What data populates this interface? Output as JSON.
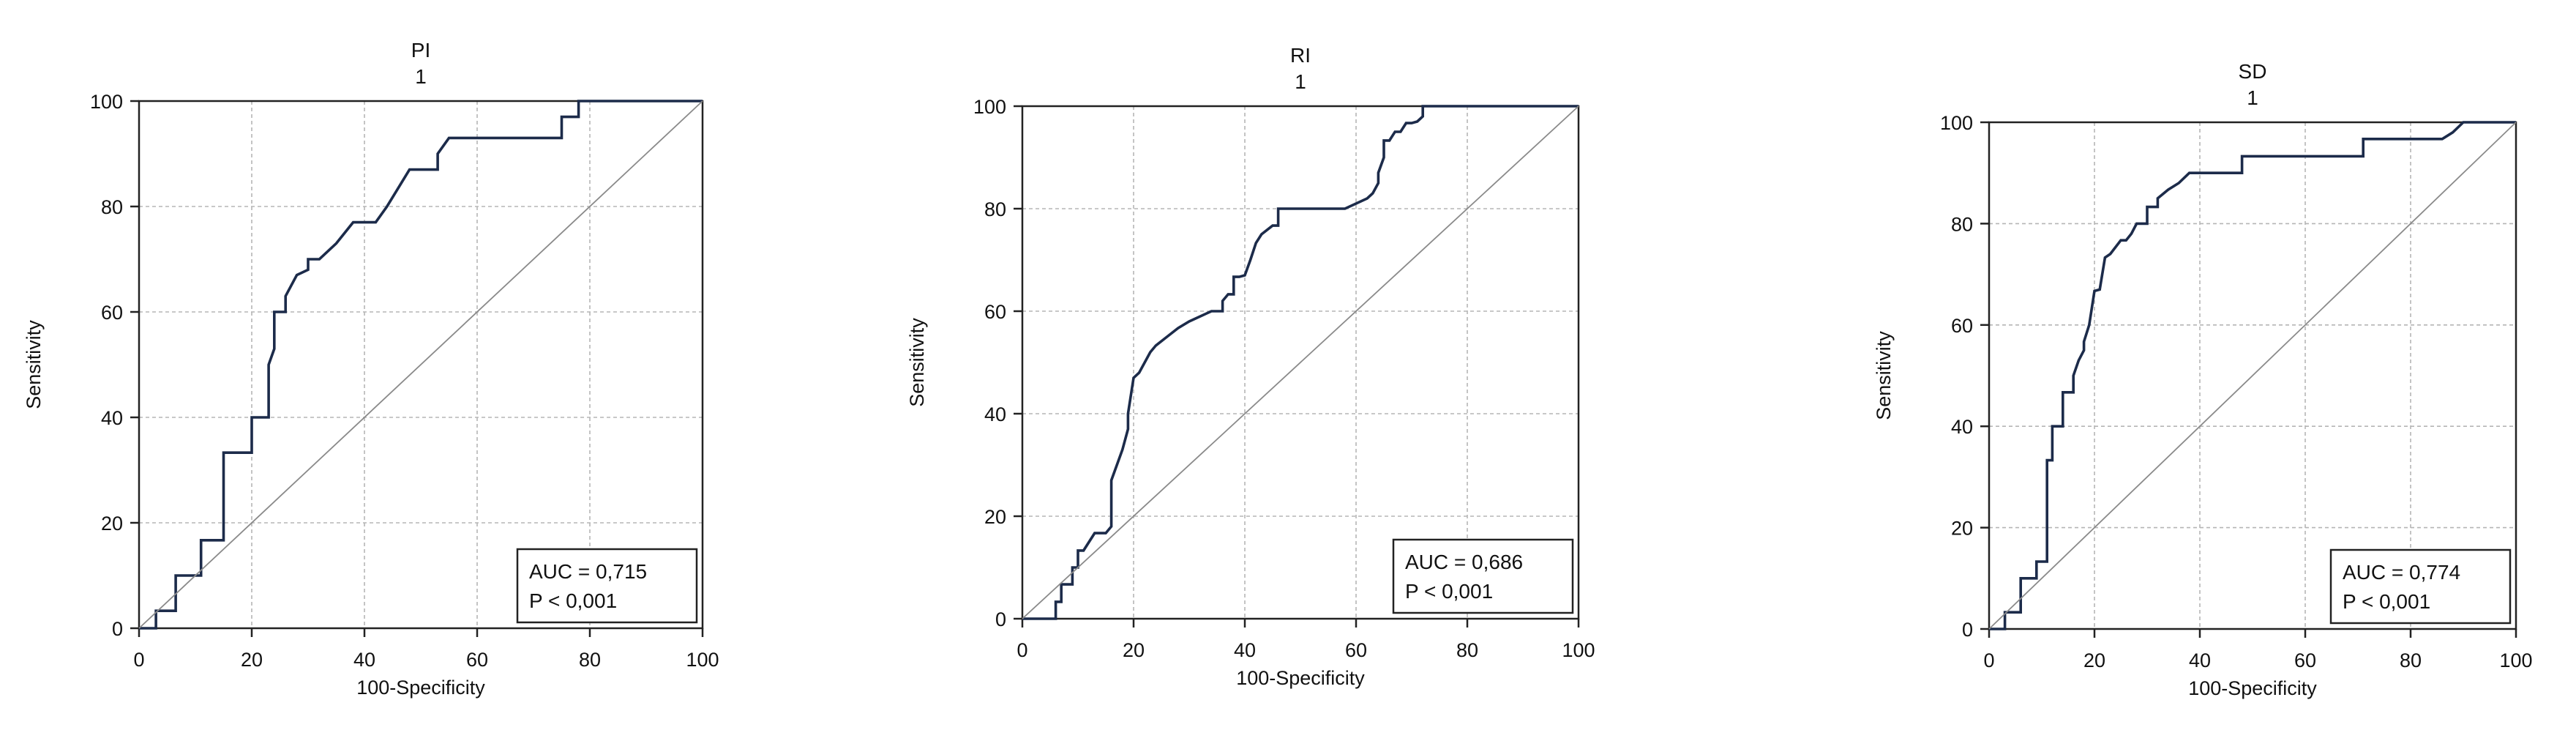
{
  "colors": {
    "curve": "#1c2b4a",
    "diagonal": "#8a8a8a",
    "grid": "#b5b5b5",
    "frame": "#222222"
  },
  "chart_data": [
    {
      "type": "line",
      "title": "PI",
      "subtitle": "1",
      "xlabel": "100-Specificity",
      "ylabel": "Sensitivity",
      "xlim": [
        0,
        100
      ],
      "ylim": [
        0,
        100
      ],
      "xticks": [
        0,
        20,
        40,
        60,
        80,
        100
      ],
      "yticks": [
        0,
        20,
        40,
        60,
        80,
        100
      ],
      "grid": true,
      "annotation": [
        "AUC = 0,715",
        "P < 0,001"
      ],
      "annotation_position": "bottom-right",
      "series": [
        {
          "role": "roc",
          "x": [
            0,
            3,
            3,
            6.5,
            6.5,
            11,
            11,
            15,
            15,
            20,
            20,
            23,
            23,
            24,
            24,
            26,
            26,
            28,
            28,
            30,
            30,
            32,
            32,
            35,
            35,
            38,
            38,
            42,
            44,
            48,
            48,
            53,
            53,
            55,
            55,
            75,
            75,
            78,
            78,
            100
          ],
          "y": [
            0,
            0,
            3.3,
            3.3,
            10,
            10,
            16.7,
            16.7,
            33.3,
            33.3,
            40,
            40,
            50,
            53,
            60,
            60,
            63,
            67,
            67,
            68,
            70,
            70,
            70,
            73,
            73,
            77,
            77,
            77,
            80,
            87,
            87,
            87,
            90,
            93,
            93,
            93,
            97,
            97,
            100,
            100
          ]
        },
        {
          "role": "reference",
          "x": [
            0,
            100
          ],
          "y": [
            0,
            100
          ]
        }
      ]
    },
    {
      "type": "line",
      "title": "RI",
      "subtitle": "1",
      "xlabel": "100-Specificity",
      "ylabel": "Sensitivity",
      "xlim": [
        0,
        100
      ],
      "ylim": [
        0,
        100
      ],
      "xticks": [
        0,
        20,
        40,
        60,
        80,
        100
      ],
      "yticks": [
        0,
        20,
        40,
        60,
        80,
        100
      ],
      "grid": true,
      "annotation": [
        "AUC = 0,686",
        "P < 0,001"
      ],
      "annotation_position": "bottom-right",
      "series": [
        {
          "role": "roc",
          "x": [
            0,
            6,
            6,
            7,
            7,
            9,
            9,
            10,
            10,
            11,
            12,
            13,
            13,
            14,
            15,
            16,
            16,
            17,
            18,
            19,
            19,
            20,
            21,
            22,
            23,
            24,
            26,
            28,
            30,
            32,
            34,
            36,
            36,
            37,
            38,
            38,
            39,
            40,
            41,
            42,
            42,
            43,
            45,
            46,
            46,
            47,
            48,
            50,
            55,
            58,
            60,
            62,
            63,
            64,
            64,
            65,
            65,
            66,
            67,
            68,
            69,
            70,
            71,
            72,
            72,
            73,
            100
          ],
          "y": [
            0,
            0,
            3.3,
            3.3,
            6.7,
            6.7,
            10,
            10,
            13.3,
            13.3,
            15,
            16.7,
            16.7,
            16.7,
            16.7,
            18,
            27,
            30,
            33,
            37,
            40,
            47,
            48,
            50,
            52,
            53.3,
            55,
            56.7,
            58,
            59,
            60,
            60,
            62,
            63.3,
            63.3,
            66.7,
            66.7,
            67,
            70,
            73.3,
            73.3,
            75,
            76.7,
            76.7,
            80,
            80,
            80,
            80,
            80,
            80,
            81,
            82,
            83,
            85,
            87,
            90,
            93.3,
            93.3,
            95,
            95,
            96.7,
            96.7,
            97,
            98,
            100,
            100,
            100
          ]
        },
        {
          "role": "reference",
          "x": [
            0,
            100
          ],
          "y": [
            0,
            100
          ]
        }
      ]
    },
    {
      "type": "line",
      "title": "SD",
      "subtitle": "1",
      "xlabel": "100-Specificity",
      "ylabel": "Sensitivity",
      "xlim": [
        0,
        100
      ],
      "ylim": [
        0,
        100
      ],
      "xticks": [
        0,
        20,
        40,
        60,
        80,
        100
      ],
      "yticks": [
        0,
        20,
        40,
        60,
        80,
        100
      ],
      "grid": true,
      "annotation": [
        "AUC = 0,774",
        "P < 0,001"
      ],
      "annotation_position": "bottom-right",
      "series": [
        {
          "role": "roc",
          "x": [
            0,
            3,
            3,
            6,
            6,
            7,
            7,
            9,
            9,
            11,
            11,
            12,
            12,
            14,
            14,
            16,
            16,
            17,
            18,
            18,
            19,
            20,
            21,
            21,
            22,
            23,
            25,
            26,
            27,
            28,
            28,
            30,
            30,
            32,
            32,
            34,
            34,
            36,
            38,
            40,
            48,
            48,
            58,
            60,
            71,
            71,
            74,
            86,
            88,
            90,
            100
          ],
          "y": [
            0,
            0,
            3.3,
            3.3,
            10,
            10,
            10,
            10,
            13.3,
            13.3,
            33.3,
            33.3,
            40,
            40,
            46.7,
            46.7,
            50,
            53,
            55,
            56.7,
            60,
            66.7,
            67,
            67,
            73.3,
            74,
            76.7,
            76.7,
            78,
            80,
            80,
            80,
            83.3,
            83.3,
            85,
            86.7,
            86.7,
            88,
            90,
            90,
            90,
            93.3,
            93.3,
            93.3,
            93.3,
            96.7,
            96.7,
            96.7,
            98,
            100,
            100
          ]
        },
        {
          "role": "reference",
          "x": [
            0,
            100
          ],
          "y": [
            0,
            100
          ]
        }
      ]
    }
  ]
}
